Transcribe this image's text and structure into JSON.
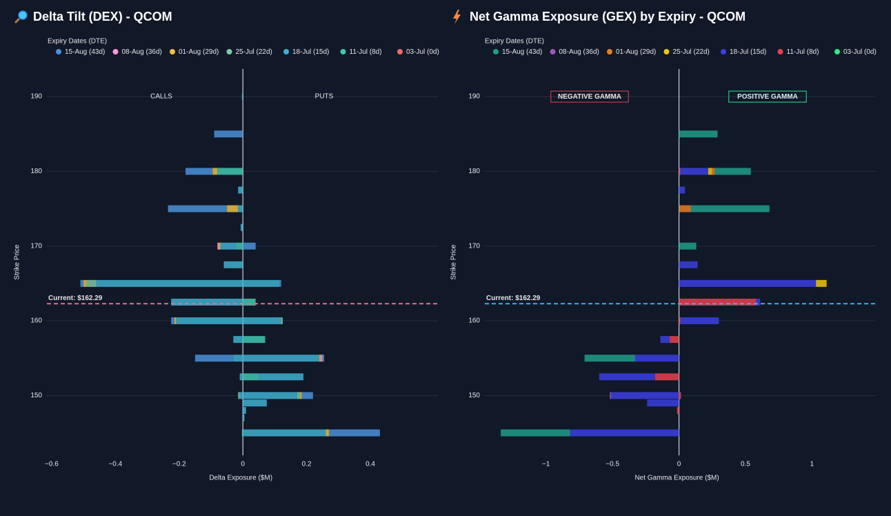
{
  "chart_data": [
    {
      "type": "bar",
      "orientation": "h",
      "title": "Delta Tilt (DEX) - QCOM",
      "legend_title": "Expiry Dates (DTE)",
      "xlabel": "Delta Exposure ($M)",
      "ylabel": "Strike Price",
      "y": [
        145,
        147,
        148,
        149,
        150,
        152.5,
        155,
        157.5,
        160,
        162.5,
        165,
        167.5,
        170,
        172.5,
        175,
        177.5,
        180,
        185,
        190
      ],
      "xlim": [
        -0.615,
        0.612
      ],
      "ylim": [
        142,
        193.7
      ],
      "xticks": [
        {
          "value": -0.6,
          "label": "−0.6"
        },
        {
          "value": -0.4,
          "label": "−0.4"
        },
        {
          "value": -0.2,
          "label": "−0.2"
        },
        0,
        0.2,
        0.4
      ],
      "yticks": [
        150,
        160,
        170,
        180,
        190
      ],
      "grid": true,
      "current": {
        "value": 162.29,
        "label": "Current: $162.29",
        "color": "#f06a8a"
      },
      "annotations": [
        {
          "text": "CALLS"
        },
        {
          "text": "PUTS"
        }
      ],
      "series": [
        {
          "name": "15-Aug (43d)",
          "color": "#4a90d9",
          "values": [
            null,
            null,
            null,
            null,
            null,
            null,
            -0.12,
            null,
            -0.01,
            null,
            -0.01,
            null,
            null,
            null,
            -0.185,
            null,
            -0.085,
            -0.09,
            null
          ],
          "put_values": [
            0.16,
            null,
            null,
            null,
            0.035,
            null,
            0.005,
            null,
            null,
            null,
            0.005,
            null,
            0.04,
            null,
            null,
            null,
            null,
            null,
            null
          ]
        },
        {
          "name": "08-Aug (36d)",
          "color": "#ff99dd",
          "values": [
            null,
            null,
            null,
            null,
            null,
            null,
            null,
            null,
            null,
            null,
            null,
            null,
            -0.005,
            null,
            null,
            null,
            null,
            null,
            null
          ],
          "put_values": [
            null,
            null,
            null,
            null,
            null,
            null,
            0.005,
            null,
            null,
            null,
            null,
            null,
            null,
            null,
            null,
            null,
            null,
            null,
            null
          ]
        },
        {
          "name": "01-Aug (29d)",
          "color": "#f0c040",
          "values": [
            null,
            null,
            null,
            null,
            null,
            null,
            null,
            null,
            -0.005,
            null,
            -0.01,
            null,
            -0.005,
            null,
            -0.035,
            null,
            -0.015,
            null,
            null
          ],
          "put_values": [
            0.01,
            null,
            null,
            null,
            0.005,
            null,
            0.005,
            null,
            null,
            null,
            null,
            null,
            null,
            null,
            null,
            null,
            null,
            null,
            null
          ]
        },
        {
          "name": "25-Jul (22d)",
          "color": "#7fc8a9",
          "values": [
            null,
            null,
            null,
            null,
            -0.005,
            null,
            null,
            null,
            null,
            null,
            -0.03,
            null,
            null,
            null,
            null,
            null,
            null,
            null,
            null
          ],
          "put_values": [
            null,
            null,
            null,
            null,
            0.01,
            null,
            null,
            null,
            0.005,
            null,
            null,
            null,
            null,
            null,
            null,
            null,
            null,
            null,
            null
          ]
        },
        {
          "name": "18-Jul (15d)",
          "color": "#3fb0d0",
          "values": [
            null,
            null,
            null,
            null,
            -0.01,
            -0.01,
            -0.03,
            -0.03,
            -0.21,
            -0.225,
            -0.46,
            -0.06,
            -0.05,
            -0.007,
            -0.015,
            -0.015,
            null,
            null,
            -0.003
          ],
          "put_values": [
            0.26,
            0.005,
            0.01,
            0.075,
            0.17,
            0.14,
            0.24,
            null,
            0.12,
            null,
            0.115,
            null,
            null,
            null,
            null,
            null,
            null,
            null,
            null
          ]
        },
        {
          "name": "11-Jul (8d)",
          "color": "#40c8b0",
          "values": [
            -0.003,
            null,
            null,
            null,
            null,
            null,
            null,
            null,
            null,
            null,
            null,
            null,
            -0.02,
            null,
            null,
            null,
            -0.08,
            null,
            null
          ],
          "put_values": [
            null,
            null,
            null,
            null,
            null,
            0.05,
            null,
            0.07,
            null,
            0.04,
            null,
            null,
            null,
            null,
            null,
            null,
            null,
            null,
            null
          ]
        },
        {
          "name": "03-Jul (0d)",
          "color": "#f06a6a",
          "values": [
            null,
            null,
            null,
            null,
            null,
            null,
            null,
            null,
            null,
            null,
            null,
            null,
            null,
            null,
            null,
            null,
            null,
            null,
            null
          ],
          "put_values": [
            null,
            null,
            null,
            null,
            null,
            null,
            null,
            null,
            null,
            null,
            null,
            null,
            null,
            null,
            null,
            null,
            null,
            null,
            null
          ]
        }
      ]
    },
    {
      "type": "bar",
      "orientation": "h",
      "title": "Net Gamma Exposure (GEX) by Expiry - QCOM",
      "legend_title": "Expiry Dates (DTE)",
      "xlabel": "Net Gamma Exposure ($M)",
      "ylabel": "Strike Price",
      "y": [
        145,
        147,
        148,
        149,
        150,
        152.5,
        155,
        157.5,
        160,
        162.5,
        165,
        167.5,
        170,
        172.5,
        175,
        177.5,
        180,
        185,
        190
      ],
      "xlim": [
        -1.46,
        1.48
      ],
      "ylim": [
        142,
        193.7
      ],
      "xticks": [
        {
          "value": -1,
          "label": "−1"
        },
        {
          "value": -0.5,
          "label": "−0.5"
        },
        0,
        0.5,
        1
      ],
      "yticks": [
        150,
        160,
        170,
        180,
        190
      ],
      "grid": true,
      "current": {
        "value": 162.29,
        "label": "Current: $162.29",
        "color": "#29b6f6"
      },
      "annotations": [
        {
          "text": "NEGATIVE GAMMA",
          "color": "#e8414f"
        },
        {
          "text": "POSITIVE GAMMA",
          "color": "#2ee88a"
        }
      ],
      "series": [
        {
          "name": "15-Aug (43d)",
          "color": "#1f9e89",
          "values": [
            -0.52,
            null,
            null,
            null,
            null,
            null,
            -0.38,
            null,
            null,
            null,
            null,
            null,
            0.13,
            null,
            0.59,
            null,
            0.27,
            0.29,
            null
          ]
        },
        {
          "name": "08-Aug (36d)",
          "color": "#9b59b6",
          "values": [
            null,
            null,
            null,
            null,
            -0.01,
            null,
            null,
            null,
            null,
            null,
            null,
            null,
            null,
            null,
            null,
            null,
            null,
            null,
            null
          ]
        },
        {
          "name": "01-Aug (29d)",
          "color": "#e67e22",
          "values": [
            null,
            null,
            null,
            null,
            null,
            null,
            null,
            null,
            null,
            null,
            null,
            null,
            null,
            null,
            0.09,
            null,
            0.02,
            null,
            null
          ]
        },
        {
          "name": "25-Jul (22d)",
          "color": "#f1c40f",
          "values": [
            null,
            null,
            null,
            null,
            null,
            null,
            null,
            null,
            null,
            null,
            0.08,
            null,
            null,
            null,
            null,
            null,
            0.03,
            null,
            null
          ]
        },
        {
          "name": "18-Jul (15d)",
          "color": "#3b3fe0",
          "values": [
            -0.82,
            null,
            null,
            -0.24,
            -0.51,
            -0.42,
            -0.33,
            -0.07,
            0.29,
            0.03,
            1.03,
            0.14,
            null,
            null,
            null,
            0.045,
            0.21,
            null,
            null
          ]
        },
        {
          "name": "11-Jul (8d)",
          "color": "#e8414f",
          "values": [
            null,
            null,
            -0.015,
            null,
            0.015,
            -0.18,
            null,
            -0.07,
            0.01,
            0.58,
            null,
            null,
            null,
            null,
            null,
            null,
            0.01,
            null,
            null
          ]
        },
        {
          "name": "03-Jul (0d)",
          "color": "#2ee88a",
          "values": [
            null,
            null,
            null,
            null,
            null,
            null,
            null,
            null,
            null,
            null,
            null,
            null,
            null,
            null,
            null,
            null,
            null,
            null,
            null
          ]
        }
      ]
    }
  ]
}
